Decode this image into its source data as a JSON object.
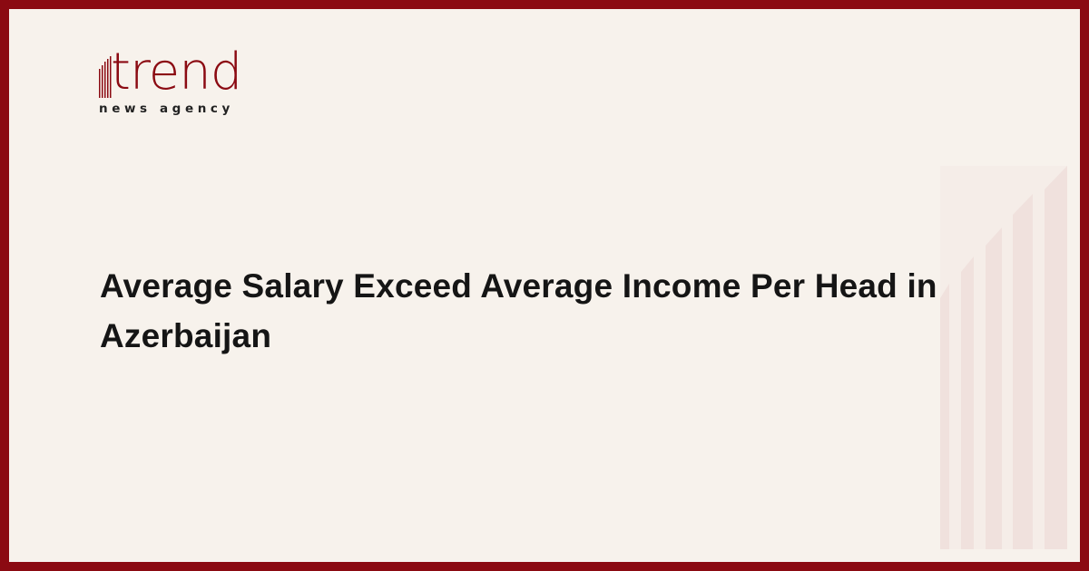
{
  "brand": {
    "name": "trend",
    "tagline": "news agency",
    "color": "#8b0a12"
  },
  "article": {
    "title": "Average Salary Exceed Average Income Per Head in Azerbaijan"
  },
  "colors": {
    "background": "#f7f2ec",
    "border": "#8b0a12",
    "decoration": "#f0e1dd"
  }
}
